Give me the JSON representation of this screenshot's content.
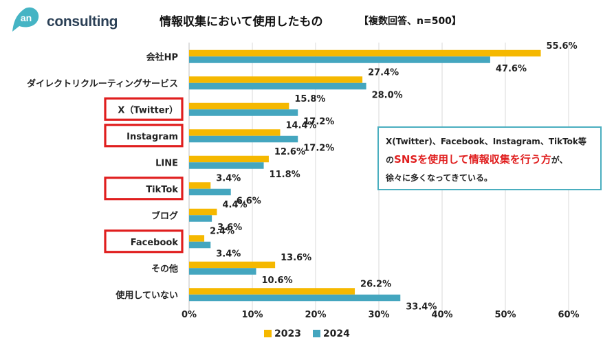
{
  "logo": {
    "badge_text": "an",
    "text": "consulting"
  },
  "title": "情報収集において使用したもの",
  "subtitle": "【複数回答、n=500】",
  "callout": {
    "line1": "X(Twitter)、Facebook、Instagram、TikTok等",
    "line2_prefix": "の",
    "line2_highlight": "SNSを使用して情報収集を行う方",
    "line2_suffix": "が、",
    "line3": "徐々に多くなってきている。"
  },
  "colors": {
    "series_2023": "#f5b800",
    "series_2024": "#44a6bf",
    "highlight_box": "#e01e1e",
    "callout_border": "#4aaebf"
  },
  "highlighted_categories": [
    "X（Twitter）",
    "Instagram",
    "TikTok",
    "Facebook"
  ],
  "chart_data": {
    "type": "bar",
    "orientation": "horizontal",
    "categories": [
      "会社HP",
      "ダイレクトリクルーティングサービス",
      "X（Twitter）",
      "Instagram",
      "LINE",
      "TikTok",
      "ブログ",
      "Facebook",
      "その他",
      "使用していない"
    ],
    "series": [
      {
        "name": "2023",
        "values": [
          55.6,
          27.4,
          15.8,
          14.4,
          12.6,
          3.4,
          4.4,
          2.4,
          13.6,
          26.2
        ],
        "labels": [
          "55.6%",
          "27.4%",
          "15.8%",
          "14.4%",
          "12.6%",
          "3.4%",
          "4.4%",
          "2.4%",
          "13.6%",
          "26.2%"
        ]
      },
      {
        "name": "2024",
        "values": [
          47.6,
          28.0,
          17.2,
          17.2,
          11.8,
          6.6,
          3.6,
          3.4,
          10.6,
          33.4
        ],
        "labels": [
          "47.6%",
          "28.0%",
          "17.2%",
          "17.2%",
          "11.8%",
          "6.6%",
          "3.6%",
          "3.4%",
          "10.6%",
          "33.4%"
        ]
      }
    ],
    "x_ticks": [
      "0%",
      "10%",
      "20%",
      "30%",
      "40%",
      "50%",
      "60%"
    ],
    "xlim": [
      0,
      60
    ],
    "grid": true,
    "legend_position": "bottom"
  }
}
